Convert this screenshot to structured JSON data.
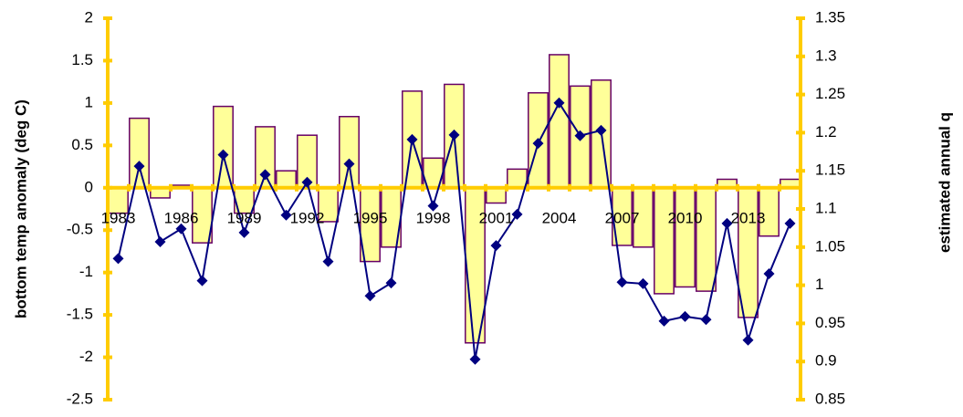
{
  "chart_data": {
    "type": "combo",
    "categories": [
      "1983",
      null,
      null,
      "1986",
      null,
      null,
      "1989",
      null,
      null,
      "1992",
      null,
      null,
      "1995",
      null,
      null,
      "1998",
      null,
      null,
      "2001",
      null,
      null,
      "2004",
      null,
      null,
      "2007",
      null,
      null,
      "2010",
      null,
      null,
      "2013",
      null,
      null
    ],
    "y_label": "bottom temp anomaly (deg C)",
    "y2_label": "estimated annual q",
    "ylim": [
      -2.5,
      2
    ],
    "yticks": [
      2,
      1.5,
      1,
      0.5,
      0,
      -0.5,
      -1,
      -1.5,
      -2,
      -2.5
    ],
    "y2lim": [
      0.85,
      1.35
    ],
    "y2ticks": [
      1.35,
      1.3,
      1.25,
      1.2,
      1.15,
      1.1,
      1.05,
      1,
      0.95,
      0.9,
      0.85
    ],
    "axis_color": "#ffcc00",
    "series": [
      {
        "type": "bar",
        "color": "#ffff99",
        "edge_color": "#660066",
        "values": [
          -0.3,
          0.82,
          -0.12,
          0.03,
          -0.65,
          0.96,
          -0.3,
          0.72,
          0.2,
          0.62,
          -0.4,
          0.84,
          -0.87,
          -0.7,
          1.14,
          0.35,
          1.22,
          -1.83,
          -0.18,
          0.22,
          1.12,
          1.57,
          1.2,
          1.27,
          -0.68,
          -0.7,
          -1.25,
          -1.17,
          -1.22,
          0.1,
          -1.53,
          -0.57,
          0.1
        ]
      },
      {
        "type": "line",
        "axis": "y2",
        "color": "#000080",
        "marker": "diamond",
        "values": [
          1.035,
          1.156,
          1.057,
          1.074,
          1.006,
          1.171,
          1.069,
          1.145,
          1.092,
          1.135,
          1.031,
          1.159,
          0.986,
          1.003,
          1.191,
          1.104,
          1.197,
          0.903,
          1.052,
          1.093,
          1.186,
          1.239,
          1.196,
          1.203,
          1.004,
          1.002,
          0.953,
          0.959,
          0.955,
          1.081,
          0.928,
          1.015,
          1.081
        ]
      }
    ]
  }
}
